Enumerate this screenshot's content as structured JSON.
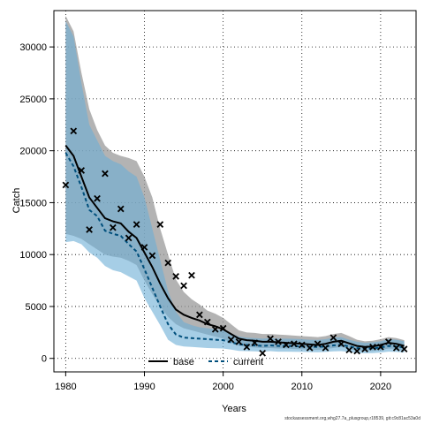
{
  "chart_data": {
    "type": "line",
    "title": "",
    "xlabel": "Years",
    "ylabel": "Catch",
    "xlim": [
      1978.5,
      2024.5
    ],
    "ylim": [
      -1300,
      33500
    ],
    "xticks": [
      1980,
      1990,
      2000,
      2010,
      2020
    ],
    "yticks": [
      0,
      5000,
      10000,
      15000,
      20000,
      25000,
      30000
    ],
    "grid": true,
    "legend_position": "bottom-center",
    "x": [
      1980,
      1981,
      1982,
      1983,
      1984,
      1985,
      1986,
      1987,
      1988,
      1989,
      1990,
      1991,
      1992,
      1993,
      1994,
      1995,
      1996,
      1997,
      1998,
      1999,
      2000,
      2001,
      2002,
      2003,
      2004,
      2005,
      2006,
      2007,
      2008,
      2009,
      2010,
      2011,
      2012,
      2013,
      2014,
      2015,
      2016,
      2017,
      2018,
      2019,
      2020,
      2021,
      2022,
      2023
    ],
    "series": [
      {
        "name": "base",
        "color": "#000000",
        "style": "solid",
        "band_color": "#999999",
        "values": [
          20500,
          19500,
          17500,
          15500,
          14500,
          13500,
          13200,
          13000,
          12200,
          11600,
          10200,
          8800,
          7200,
          5800,
          4700,
          4200,
          3900,
          3650,
          3300,
          3100,
          2800,
          2350,
          1900,
          1750,
          1700,
          1600,
          1600,
          1550,
          1500,
          1450,
          1400,
          1350,
          1300,
          1400,
          1600,
          1700,
          1450,
          1200,
          1100,
          1150,
          1300,
          1500,
          1400,
          1200
        ],
        "lower": [
          12000,
          11800,
          11500,
          11000,
          10500,
          10000,
          9800,
          9700,
          9400,
          9000,
          7500,
          6200,
          5000,
          4000,
          3300,
          2900,
          2700,
          2500,
          2300,
          2100,
          1900,
          1500,
          1200,
          1100,
          1050,
          1000,
          1000,
          950,
          950,
          900,
          880,
          850,
          820,
          900,
          1000,
          1100,
          900,
          750,
          700,
          720,
          800,
          950,
          900,
          750
        ],
        "upper": [
          33000,
          31500,
          27500,
          24000,
          22000,
          20500,
          19800,
          19500,
          19300,
          19000,
          17500,
          15500,
          12500,
          10000,
          7600,
          6400,
          5700,
          5200,
          4600,
          4300,
          3900,
          3300,
          2700,
          2500,
          2450,
          2350,
          2350,
          2300,
          2250,
          2200,
          2150,
          2100,
          2050,
          2150,
          2350,
          2450,
          2150,
          1800,
          1650,
          1700,
          1850,
          2050,
          1950,
          1750
        ]
      },
      {
        "name": "current",
        "color": "#004f7c",
        "style": "dashed",
        "band_color": "#6aaed6",
        "values": [
          19800,
          18500,
          16500,
          14300,
          13700,
          12300,
          12000,
          11800,
          11000,
          10300,
          8600,
          6800,
          5000,
          3300,
          2300,
          2000,
          1950,
          1900,
          1850,
          1800,
          1750,
          1550,
          1350,
          1300,
          1250,
          1200,
          1250,
          1200,
          1200,
          1180,
          1150,
          1120,
          1100,
          1150,
          1250,
          1300,
          1150,
          1000,
          950,
          980,
          1050,
          1200,
          1150,
          1050
        ],
        "lower": [
          11200,
          11300,
          11000,
          10200,
          9700,
          8900,
          8500,
          8300,
          7900,
          7500,
          5800,
          4500,
          3200,
          1800,
          1300,
          1150,
          1100,
          1050,
          1000,
          980,
          950,
          850,
          720,
          700,
          680,
          650,
          700,
          650,
          650,
          640,
          620,
          600,
          590,
          620,
          680,
          700,
          620,
          520,
          500,
          510,
          560,
          650,
          620,
          560
        ],
        "upper": [
          32500,
          31000,
          26500,
          22500,
          21000,
          19500,
          19000,
          18700,
          18000,
          17500,
          15500,
          12500,
          9500,
          6500,
          4500,
          3500,
          3200,
          3000,
          2900,
          2800,
          2700,
          2400,
          2100,
          2000,
          1950,
          1900,
          1950,
          1900,
          1900,
          1880,
          1850,
          1800,
          1780,
          1850,
          2000,
          2050,
          1800,
          1600,
          1500,
          1550,
          1650,
          1850,
          1800,
          1650
        ]
      }
    ],
    "observations": {
      "name": "observed",
      "marker": "x",
      "x": [
        1980,
        1981,
        1982,
        1983,
        1984,
        1985,
        1986,
        1987,
        1988,
        1989,
        1990,
        1991,
        1992,
        1993,
        1994,
        1995,
        1996,
        1997,
        1998,
        1999,
        2000,
        2001,
        2002,
        2003,
        2004,
        2005,
        2006,
        2007,
        2008,
        2009,
        2010,
        2011,
        2012,
        2013,
        2014,
        2015,
        2016,
        2017,
        2018,
        2019,
        2020,
        2021,
        2022,
        2023
      ],
      "y": [
        16700,
        21900,
        18100,
        12400,
        15400,
        17800,
        12600,
        14400,
        11600,
        12900,
        10700,
        9900,
        12900,
        9200,
        7900,
        7000,
        8000,
        4200,
        3500,
        2800,
        2900,
        1800,
        1600,
        1100,
        1500,
        500,
        1900,
        1600,
        1300,
        1400,
        1300,
        1000,
        1400,
        1000,
        2000,
        1400,
        800,
        700,
        900,
        1100,
        1100,
        1600,
        1000,
        900
      ]
    }
  },
  "footer_text": "stockassessment.org,whg27.7a_plusgroup,r18539, git:c9c81ac53a0d"
}
